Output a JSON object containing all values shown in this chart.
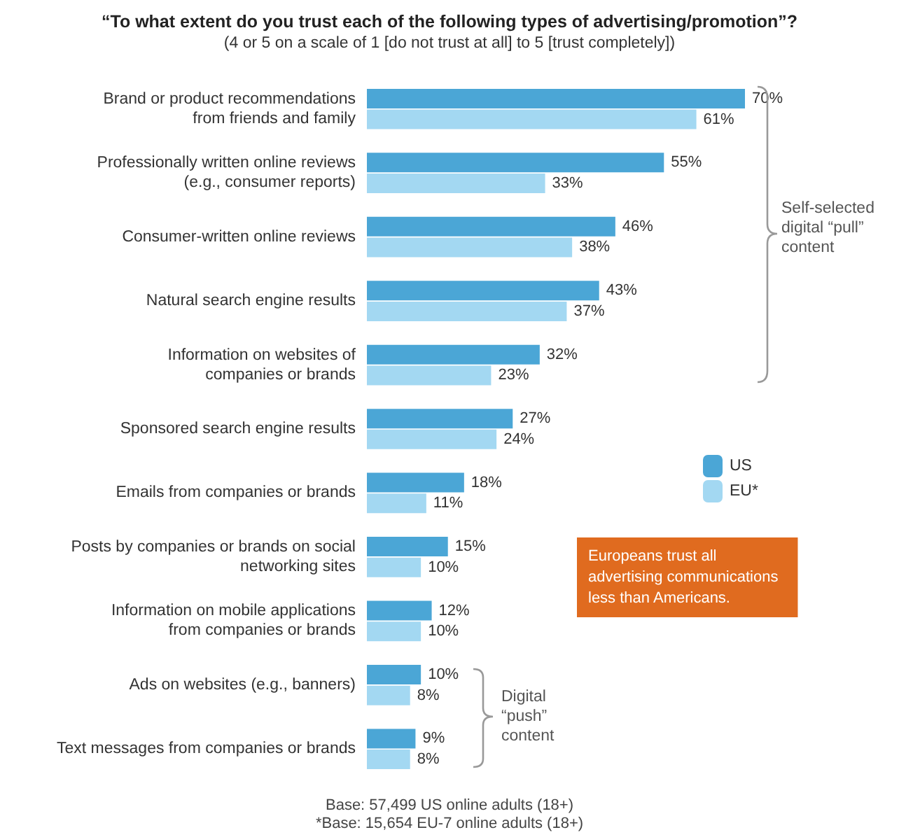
{
  "chart_data": {
    "type": "bar",
    "orientation": "horizontal",
    "title": "“To what extent do you trust each of the following types of advertising/promotion”?",
    "subtitle": "(4 or 5 on a scale of 1 [do not trust at all] to 5 [trust completely])",
    "categories": [
      "Brand or product recommendations\nfrom friends and family",
      "Professionally written online reviews\n(e.g., consumer reports)",
      "Consumer-written online reviews",
      "Natural search engine results",
      "Information on websites of\ncompanies or brands",
      "Sponsored search engine results",
      "Emails from companies or brands",
      "Posts by companies or brands on social\nnetworking sites",
      "Information on mobile applications\nfrom companies or brands",
      "Ads on websites (e.g., banners)",
      "Text messages from companies or brands"
    ],
    "series": [
      {
        "name": "US",
        "color": "#4ba6d6",
        "values": [
          70,
          55,
          46,
          43,
          32,
          27,
          18,
          15,
          12,
          10,
          9
        ],
        "value_labels": [
          "70%",
          "55%",
          "46%",
          "43%",
          "32%",
          "27%",
          "18%",
          "15%",
          "12%",
          "10%",
          "9%"
        ]
      },
      {
        "name": "EU*",
        "color": "#a3d8f2",
        "values": [
          61,
          33,
          38,
          37,
          23,
          24,
          11,
          10,
          10,
          8,
          8
        ],
        "value_labels": [
          "61%",
          "33%",
          "38%",
          "37%",
          "23%",
          "24%",
          "11%",
          "10%",
          "10%",
          "8%",
          "8%"
        ]
      }
    ],
    "legend": "right",
    "annotations": [
      "Self-selected\ndigital “pull”\ncontent",
      "Digital\n“push”\ncontent",
      "Europeans trust all\nadvertising communications\nless than Americans.",
      "Base: 57,499 US online adults (18+)",
      "*Base: 15,654 EU-7 online adults (18+)"
    ]
  }
}
